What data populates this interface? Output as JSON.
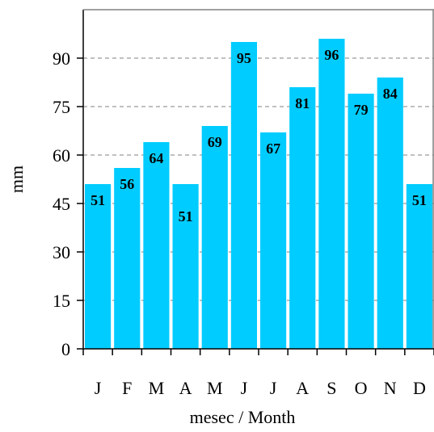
{
  "chart_data": {
    "type": "bar",
    "categories": [
      "J",
      "F",
      "M",
      "A",
      "M",
      "J",
      "J",
      "A",
      "S",
      "O",
      "N",
      "D"
    ],
    "values": [
      51,
      56,
      64,
      51,
      69,
      95,
      67,
      81,
      96,
      79,
      84,
      51
    ],
    "data_labels": [
      "51",
      "56",
      "64",
      "51",
      "69",
      "95",
      "67",
      "81",
      "96",
      "79",
      "84",
      "51"
    ],
    "xlabel": "mesec / Month",
    "ylabel": "mm",
    "ylim": [
      0,
      105
    ],
    "yticks": [
      0,
      15,
      30,
      45,
      60,
      75,
      90
    ],
    "ytick_labels": [
      "0",
      "15",
      "30",
      "45",
      "60",
      "75",
      "90"
    ],
    "grid": "horizontal dashed",
    "bar_color": "#00ccff",
    "legend": "none"
  }
}
